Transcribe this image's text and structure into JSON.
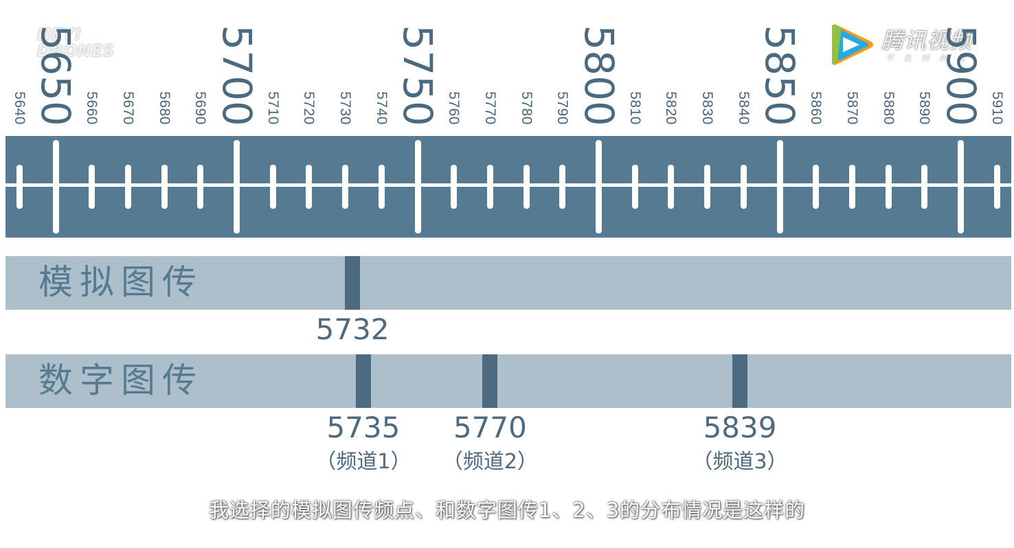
{
  "logos": {
    "left_line1": "HEY!",
    "left_line2": "DRONES",
    "right_brand": "腾讯视频",
    "right_slogan": "不负好时光",
    "right_icon": "tencent-video-play-icon"
  },
  "ruler": {
    "range": [
      5636,
      5914
    ],
    "major_ticks": [
      "5650",
      "5700",
      "5750",
      "5800",
      "5850",
      "5900"
    ],
    "minor_ticks": [
      "5640",
      "5660",
      "5670",
      "5680",
      "5690",
      "5710",
      "5720",
      "5730",
      "5740",
      "5760",
      "5770",
      "5780",
      "5790",
      "5810",
      "5820",
      "5830",
      "5840",
      "5860",
      "5870",
      "5880",
      "5890",
      "5910"
    ]
  },
  "rows": [
    {
      "title": "模拟图传",
      "markers": [
        {
          "freq": 5732,
          "label": "5732",
          "channel": ""
        }
      ]
    },
    {
      "title": "数字图传",
      "markers": [
        {
          "freq": 5735,
          "label": "5735",
          "channel": "（频道1）"
        },
        {
          "freq": 5770,
          "label": "5770",
          "channel": "（频道2）"
        },
        {
          "freq": 5839,
          "label": "5839",
          "channel": "（频道3）"
        }
      ]
    }
  ],
  "colors": {
    "band_dark": "#557a92",
    "band_light": "#adbfcb",
    "marker": "#4c6b80",
    "text": "#4d6a80"
  },
  "subtitle": "我选择的模拟图传频点、和数字图传1、2、3的分布情况是这样的"
}
